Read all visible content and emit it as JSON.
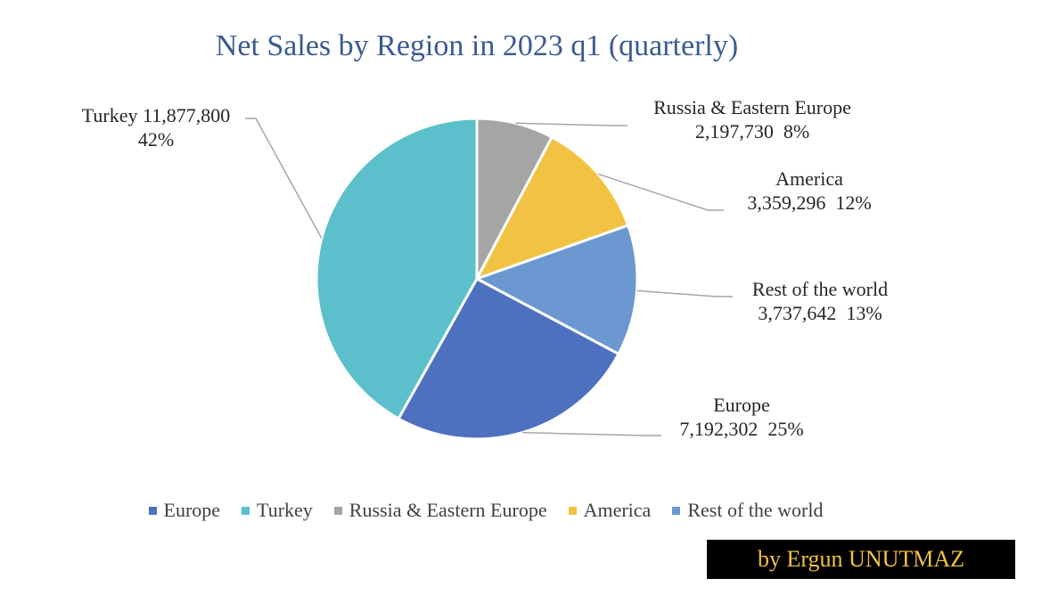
{
  "chart_data": {
    "type": "pie",
    "title": "Net Sales by Region in 2023 q1 (quarterly)",
    "start_angle_deg": 0,
    "direction": "clockwise",
    "slices": [
      {
        "name": "Russia & Eastern Europe",
        "value_label": "2,197,730",
        "percent_label": "8%",
        "value": 2197730,
        "color": "#a5a5a5"
      },
      {
        "name": "America",
        "value_label": "3,359,296",
        "percent_label": "12%",
        "value": 3359296,
        "color": "#f2c343"
      },
      {
        "name": "Rest of the world",
        "value_label": "3,737,642",
        "percent_label": "13%",
        "value": 3737642,
        "color": "#6b98d0"
      },
      {
        "name": "Europe",
        "value_label": "7,192,302",
        "percent_label": "25%",
        "value": 7192302,
        "color": "#4e71bf"
      },
      {
        "name": "Turkey",
        "value_label": "11,877,800",
        "percent_label": "42%",
        "value": 11877800,
        "color": "#5bc0cc"
      }
    ],
    "legend": {
      "placement": "bottom",
      "entries": [
        "Europe",
        "Turkey",
        "Russia & Eastern Europe",
        "America",
        "Rest of the world"
      ]
    }
  },
  "credit": "by Ergun UNUTMAZ"
}
